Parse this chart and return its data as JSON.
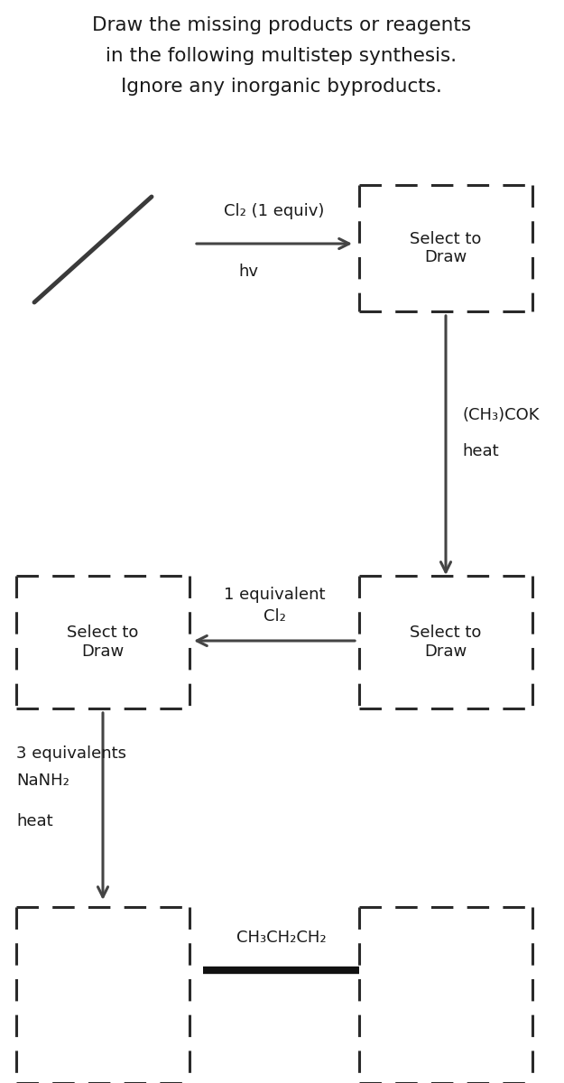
{
  "title_line1": "Draw the missing products or reagents",
  "title_line2": "in the following multistep synthesis.",
  "title_line3": "Ignore any inorganic byproducts.",
  "title_fontsize": 15.5,
  "bg_color": "#ffffff",
  "text_color": "#1a1a1a",
  "arrow_color": "#444444",
  "dashed_box_color": "#2a2a2a",
  "step1_reagent_line1": "Cl₂ (1 equiv)",
  "step1_reagent_line2": "hv",
  "step2_reagent_line1": "(CH₃)COK",
  "step2_reagent_line2": "heat",
  "step3_reagent_line1": "1 equivalent",
  "step3_reagent_line2": "Cl₂",
  "step4_reagent_line1": "3 equivalents",
  "step4_reagent_line2": "NaNH₂",
  "step4_reagent_line3": "heat",
  "bottom_formula": "CH₃CH₂CH₂",
  "select_to_draw": "Select to\nDraw"
}
